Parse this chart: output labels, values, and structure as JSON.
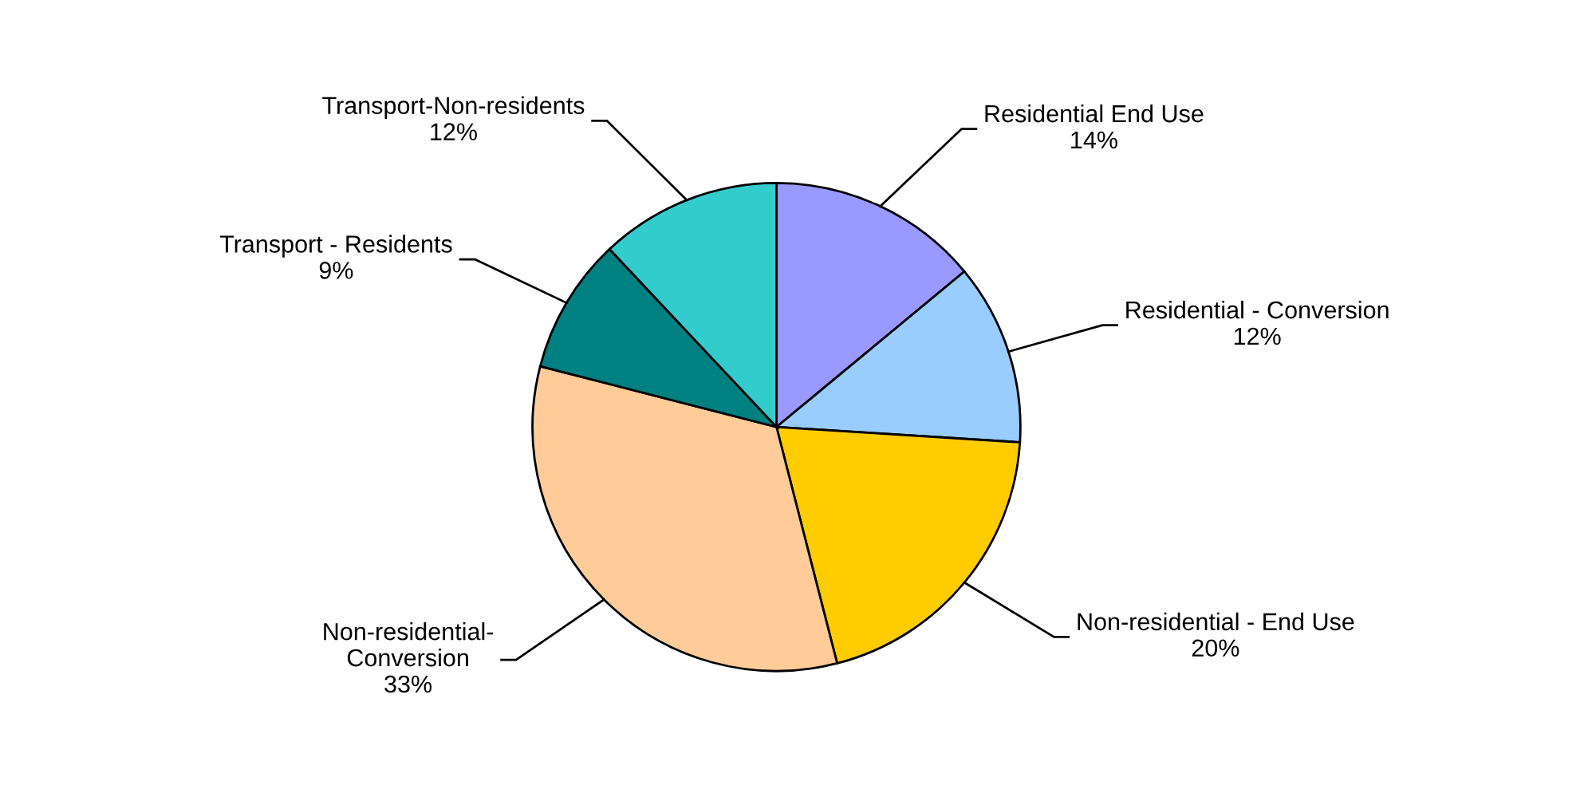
{
  "chart_data": {
    "type": "pie",
    "categories": [
      "Residential End Use",
      "Residential - Conversion",
      "Non-residential - End Use",
      "Non-residential-\nConversion",
      "Transport - Residents",
      "Transport-Non-residents"
    ],
    "values": [
      14,
      12,
      20,
      33,
      9,
      12
    ],
    "value_labels": [
      "14%",
      "12%",
      "20%",
      "33%",
      "9%",
      "12%"
    ],
    "colors": [
      "#9999ff",
      "#99ccff",
      "#ffcc00",
      "#ffcc99",
      "#008080",
      "#33cccc"
    ]
  }
}
